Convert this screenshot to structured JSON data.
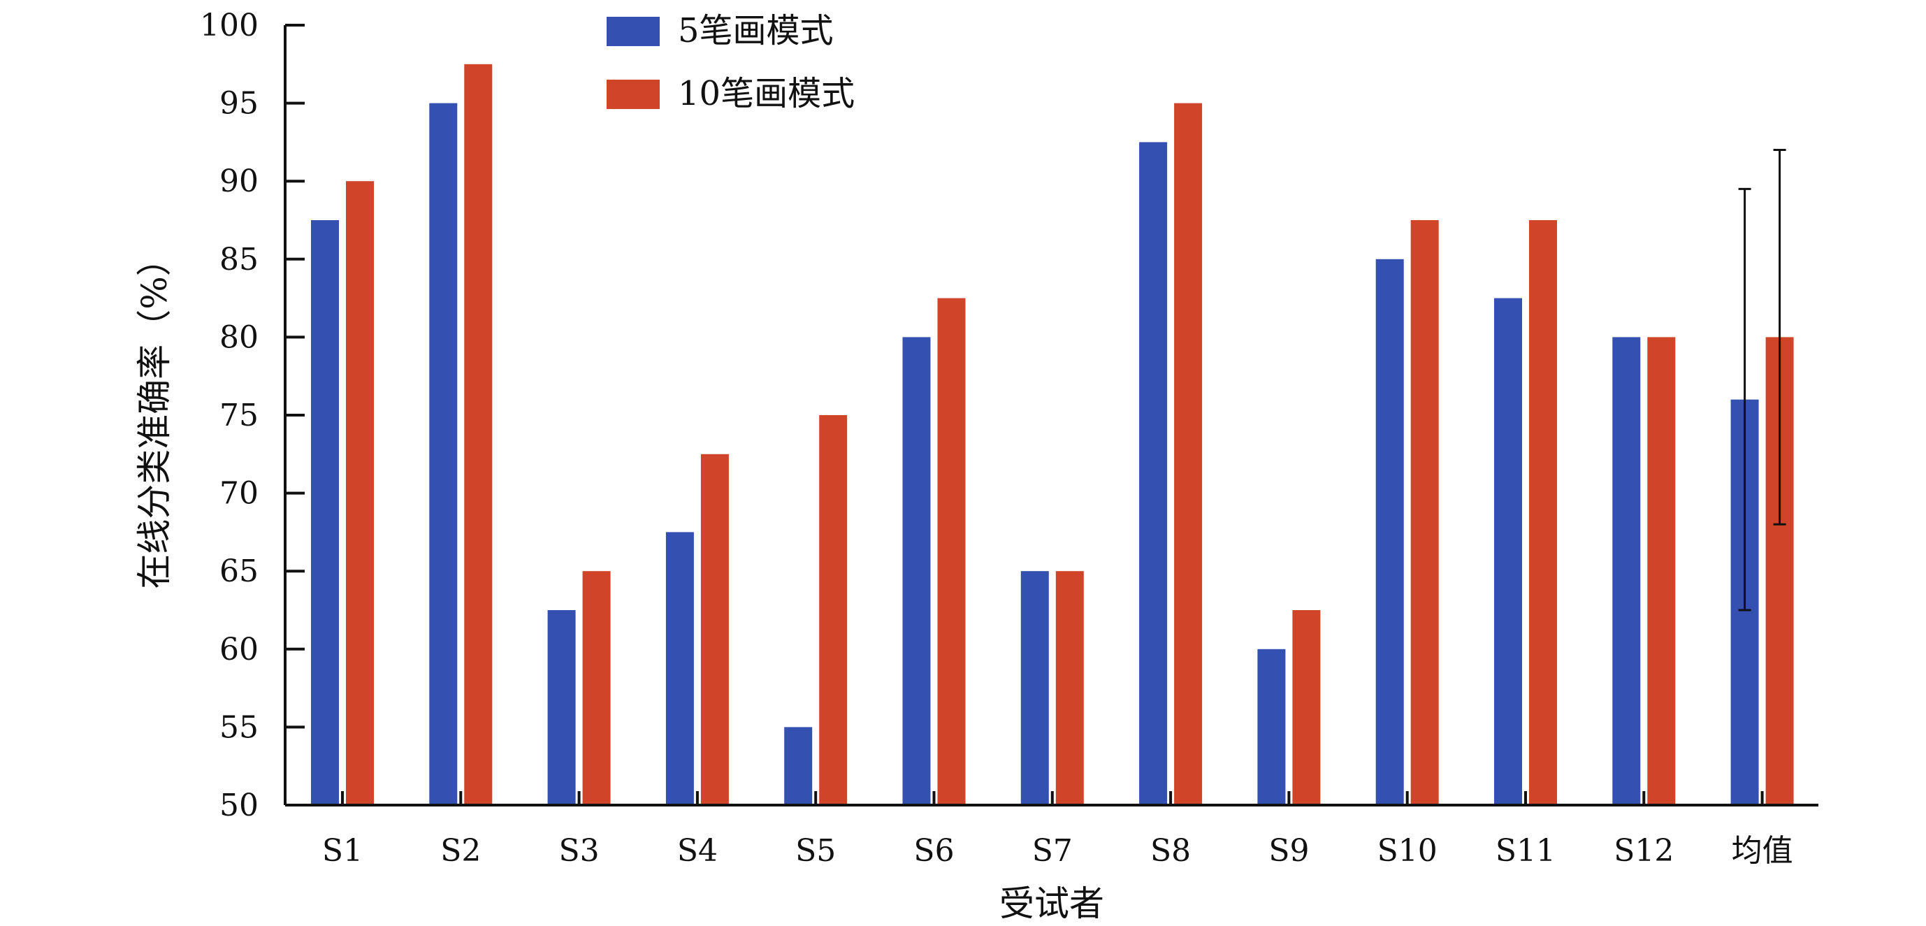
{
  "colors": {
    "series1": "#3451b1",
    "series2": "#d0452a",
    "axis": "#111111"
  },
  "chart_data": {
    "type": "bar",
    "categories": [
      "S1",
      "S2",
      "S3",
      "S4",
      "S5",
      "S6",
      "S7",
      "S8",
      "S9",
      "S10",
      "S11",
      "S12",
      "均值"
    ],
    "series": [
      {
        "name": "5笔画模式",
        "values": [
          87.5,
          95,
          62.5,
          67.5,
          55,
          80,
          65,
          92.5,
          60,
          85,
          82.5,
          80,
          76
        ]
      },
      {
        "name": "10笔画模式",
        "values": [
          90,
          97.5,
          65,
          72.5,
          75,
          82.5,
          65,
          95,
          62.5,
          87.5,
          87.5,
          80,
          80
        ]
      }
    ],
    "error_bars": {
      "category": "均值",
      "series": [
        {
          "name": "5笔画模式",
          "low": 62.5,
          "high": 89.5
        },
        {
          "name": "10笔画模式",
          "low": 68,
          "high": 92
        }
      ]
    },
    "title": "",
    "xlabel": "受试者",
    "ylabel": "在线分类准确率（%）",
    "ylim": [
      50,
      100
    ],
    "yticks": [
      50,
      55,
      60,
      65,
      70,
      75,
      80,
      85,
      90,
      95,
      100
    ],
    "grid": false,
    "legend_position": "top-left"
  }
}
